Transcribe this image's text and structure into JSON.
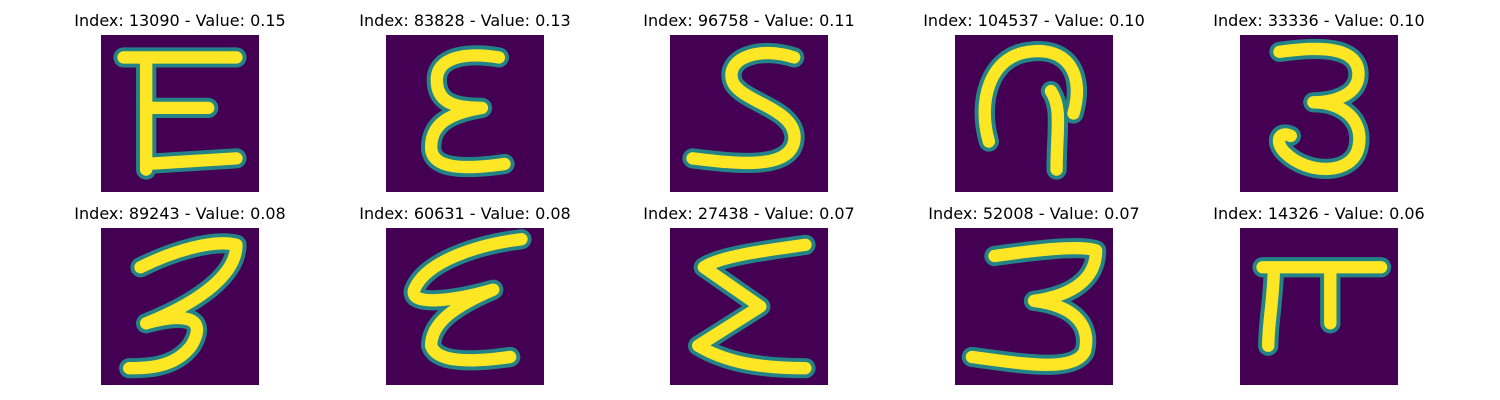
{
  "colors": {
    "background": "#ffffff",
    "image_dark": "#440154",
    "image_mid": "#21918c",
    "image_light": "#fde725"
  },
  "tiles": [
    {
      "title": "Index: 13090 - Value: 0.15",
      "glyph": "E"
    },
    {
      "title": "Index: 83828 - Value: 0.13",
      "glyph": "ε"
    },
    {
      "title": "Index: 96758 - Value: 0.11",
      "glyph": "S"
    },
    {
      "title": "Index: 104537 - Value: 0.10",
      "glyph": "ɋ"
    },
    {
      "title": "Index: 33336 - Value: 0.10",
      "glyph": "3"
    },
    {
      "title": "Index: 89243 - Value: 0.08",
      "glyph": "3"
    },
    {
      "title": "Index: 60631 - Value: 0.08",
      "glyph": "ε"
    },
    {
      "title": "Index: 27438 - Value: 0.07",
      "glyph": "Σ"
    },
    {
      "title": "Index: 52008 - Value: 0.07",
      "glyph": "3"
    },
    {
      "title": "Index: 14326 - Value: 0.06",
      "glyph": "π"
    }
  ]
}
